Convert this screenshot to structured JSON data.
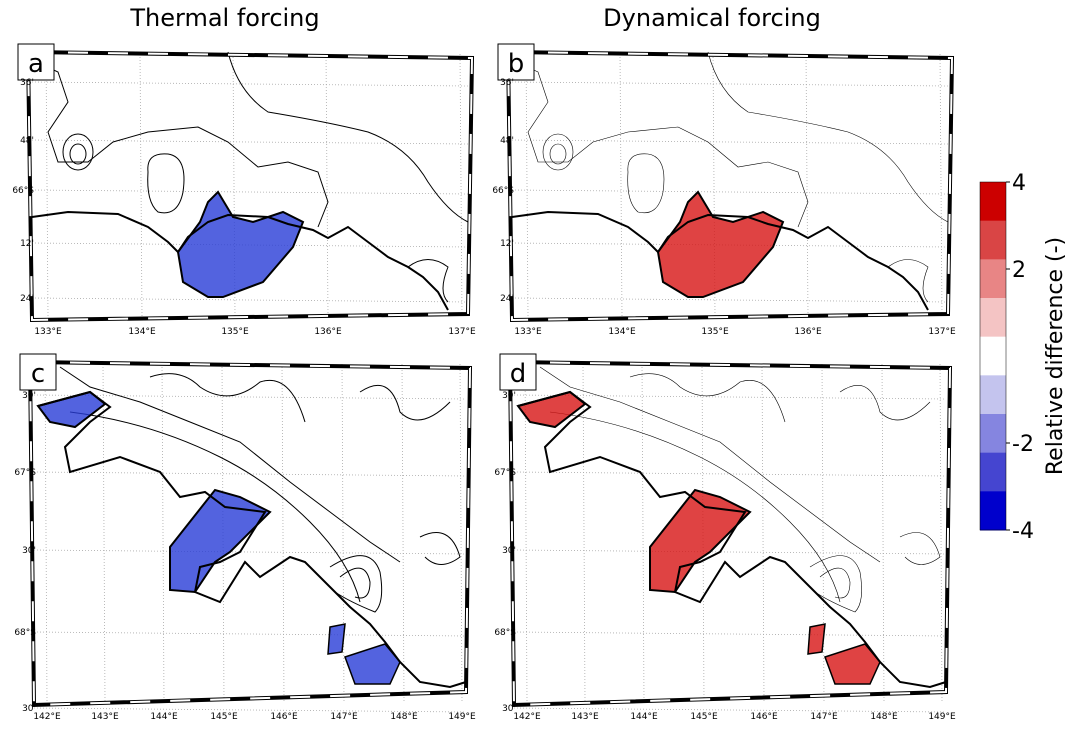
{
  "columns": [
    "Thermal forcing",
    "Dynamical forcing"
  ],
  "panels": [
    {
      "label": "a",
      "lat_labels": [
        "36'",
        "48'",
        "66°S",
        "12'",
        "24'"
      ],
      "lon_labels": [
        "133°E",
        "134°E",
        "135°E",
        "136°E",
        "137°E"
      ]
    },
    {
      "label": "b",
      "lat_labels": [
        "36'",
        "48'",
        "66°S",
        "12'",
        "24'"
      ],
      "lon_labels": [
        "133°E",
        "134°E",
        "135°E",
        "136°E",
        "137°E"
      ]
    },
    {
      "label": "c",
      "lat_labels": [
        "30'",
        "67°S",
        "30'",
        "68°S",
        "30'"
      ],
      "lon_labels": [
        "142°E",
        "143°E",
        "144°E",
        "145°E",
        "146°E",
        "147°E",
        "148°E",
        "149°E"
      ]
    },
    {
      "label": "d",
      "lat_labels": [
        "30'",
        "67°S",
        "30'",
        "68°S",
        "30'"
      ],
      "lon_labels": [
        "142°E",
        "143°E",
        "144°E",
        "145°E",
        "146°E",
        "147°E",
        "148°E",
        "149°E"
      ]
    }
  ],
  "colorbar": {
    "label": "Relative difference (-)",
    "lim": [
      -4,
      4
    ],
    "ticks": [
      4,
      2,
      -2,
      -4
    ],
    "colors": [
      "#cc0000",
      "#d94545",
      "#e88585",
      "#f4c4c4",
      "#ffffff",
      "#c4c4ee",
      "#8585e0",
      "#4545d0",
      "#0000cc"
    ]
  }
}
